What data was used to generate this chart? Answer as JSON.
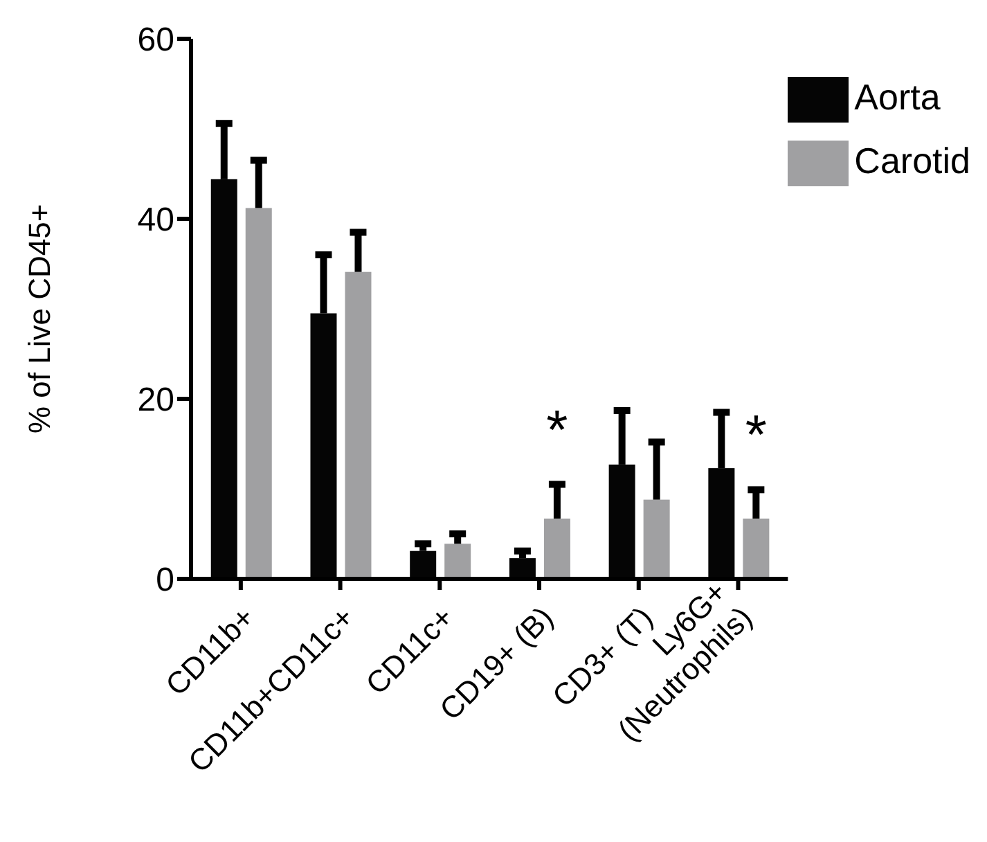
{
  "chart_data": {
    "type": "bar",
    "ylabel": "% of Live CD45+",
    "categories": [
      "CD11b+",
      "CD11b+CD11c+",
      "CD11c+",
      "CD19+ (B)",
      "CD3+ (T)",
      "Ly6G+\n(Neutrophils)"
    ],
    "series": [
      {
        "name": "Aorta",
        "color": "#050505",
        "values": [
          44.4,
          29.5,
          3.1,
          2.3,
          12.7,
          12.3
        ],
        "errors": [
          [
            44.4,
            50.6
          ],
          [
            29.5,
            36.0
          ],
          [
            3.1,
            3.9
          ],
          [
            2.3,
            3.1
          ],
          [
            12.7,
            18.7
          ],
          [
            12.3,
            18.5
          ]
        ]
      },
      {
        "name": "Carotid",
        "color": "#a0a0a2",
        "values": [
          41.2,
          34.1,
          3.9,
          6.7,
          8.8,
          6.7
        ],
        "errors": [
          [
            41.2,
            46.5
          ],
          [
            34.1,
            38.5
          ],
          [
            3.9,
            5.0
          ],
          [
            6.7,
            10.5
          ],
          [
            8.8,
            15.2
          ],
          [
            6.7,
            9.9
          ]
        ]
      }
    ],
    "ylim": [
      0,
      60
    ],
    "yticks": [
      0,
      20,
      40,
      60
    ],
    "grid": false,
    "legend": "top right",
    "annotations": [
      "*",
      "*"
    ]
  }
}
